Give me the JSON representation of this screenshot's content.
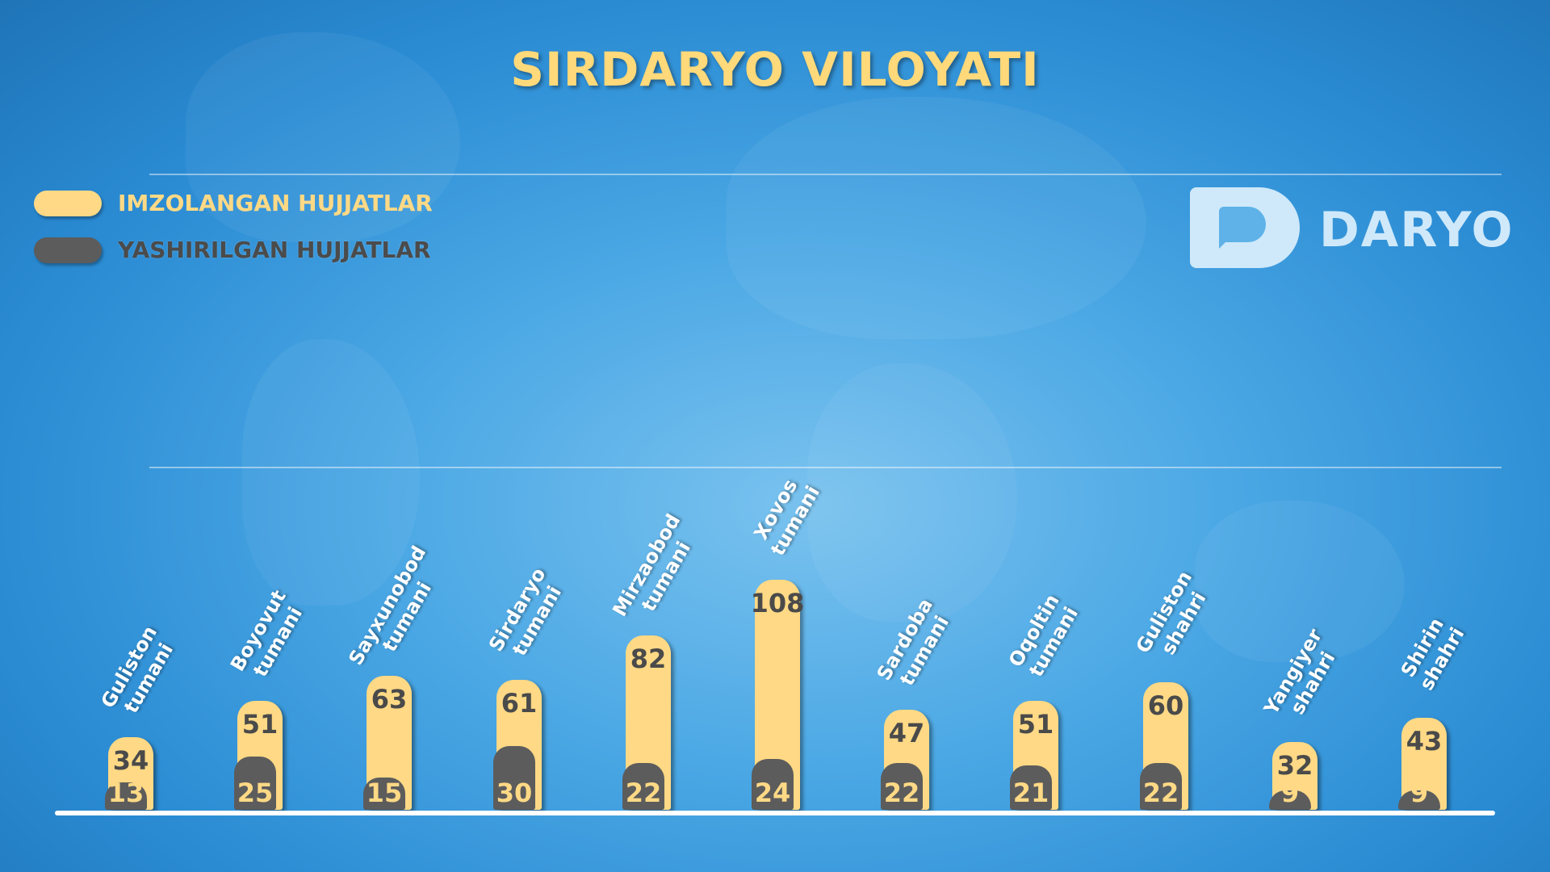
{
  "title": "SIRDARYO VILOYATI",
  "legend": {
    "signed": "IMZOLANGAN HUJJATLAR",
    "hidden": "YASHIRILGAN HUJJATLAR"
  },
  "logo": {
    "text": "DARYO"
  },
  "colors": {
    "signed": "#ffd985",
    "hidden": "#5c5c5c",
    "title": "#ffd97a",
    "background": "#3c9ee0"
  },
  "chart_data": {
    "type": "bar",
    "categories": [
      [
        "Guliston",
        "tumani"
      ],
      [
        "Boyovut",
        "tumani"
      ],
      [
        "Sayxunobod",
        "tumani"
      ],
      [
        "Sirdaryo",
        "tumani"
      ],
      [
        "Mirzaobod",
        "tumani"
      ],
      [
        "Xovos",
        "tumani"
      ],
      [
        "Sardoba",
        "tumani"
      ],
      [
        "Oqoltin",
        "tumani"
      ],
      [
        "Guliston",
        "shahri"
      ],
      [
        "Yangiyer",
        "shahri"
      ],
      [
        "Shirin",
        "shahri"
      ]
    ],
    "series": [
      {
        "name": "IMZOLANGAN HUJJATLAR",
        "values": [
          34,
          51,
          63,
          61,
          82,
          108,
          47,
          51,
          60,
          32,
          43
        ]
      },
      {
        "name": "YASHIRILGAN HUJJATLAR",
        "values": [
          13,
          25,
          15,
          30,
          22,
          24,
          22,
          21,
          22,
          9,
          9
        ]
      }
    ],
    "ylim": [
      0,
      108
    ],
    "grid": true,
    "legend_position": "top-left"
  }
}
